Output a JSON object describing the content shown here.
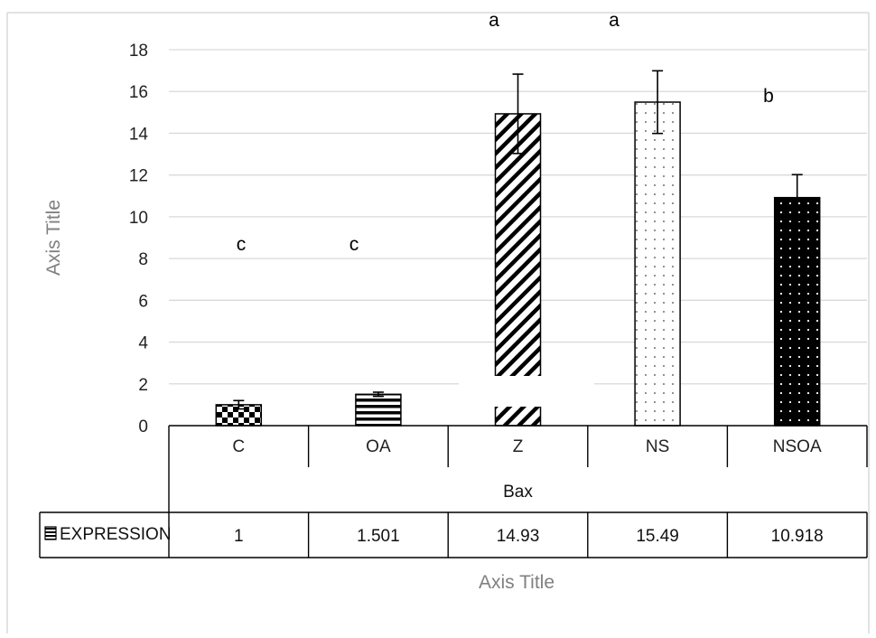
{
  "chart_data": {
    "type": "bar",
    "title": "",
    "xlabel": "Axis Title",
    "ylabel": "Axis Title",
    "group_label": "Bax",
    "categories": [
      "C",
      "OA",
      "Z",
      "NS",
      "NSOA"
    ],
    "series": [
      {
        "name": "EXPRESSION",
        "values": [
          1,
          1.501,
          14.93,
          15.49,
          10.918
        ],
        "value_labels": [
          "1",
          "1.501",
          "14.93",
          "15.49",
          "10.918"
        ],
        "error": [
          0.2,
          0.1,
          1.9,
          1.5,
          1.1
        ],
        "patterns": [
          "checker",
          "horizontal-stripes",
          "diagonal-stripes",
          "dots-light",
          "dots-dark"
        ]
      }
    ],
    "significance_letters": [
      "c",
      "c",
      "a",
      "a",
      "b"
    ],
    "ylim": [
      0,
      18
    ],
    "yticks": [
      0,
      2,
      4,
      6,
      8,
      10,
      12,
      14,
      16,
      18
    ],
    "grid": true,
    "legend": "data-table"
  }
}
